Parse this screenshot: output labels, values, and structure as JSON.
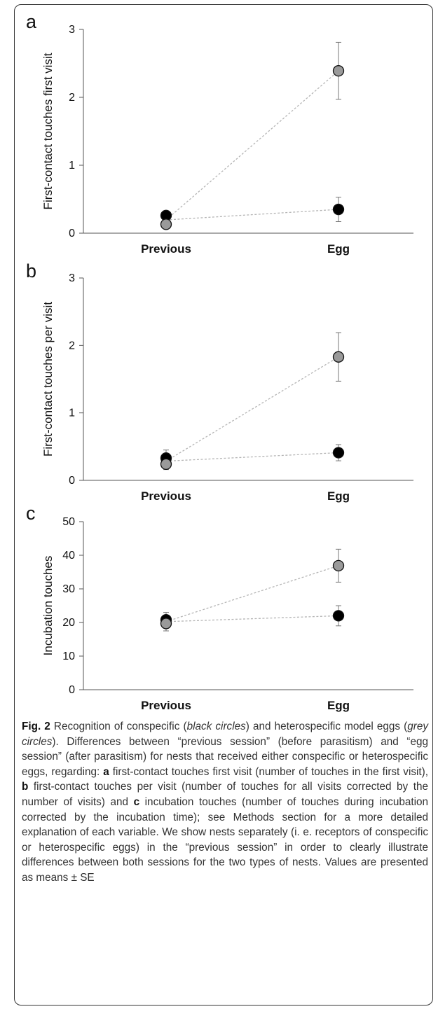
{
  "chart_data": [
    {
      "type": "line",
      "panel_label": "a",
      "categories": [
        "Previous",
        "Egg"
      ],
      "ylabel": "First-contact touches first visit",
      "ylim": [
        0,
        3
      ],
      "yticks": [
        0,
        1,
        2,
        3
      ],
      "grid": false,
      "series": [
        {
          "color": "#000000",
          "values": [
            0.26,
            0.35
          ],
          "errors": [
            0.07,
            0.18
          ]
        },
        {
          "color": "#9a9a9a",
          "values": [
            0.13,
            2.39
          ],
          "errors": [
            0.0,
            0.42
          ]
        }
      ]
    },
    {
      "type": "line",
      "panel_label": "b",
      "categories": [
        "Previous",
        "Egg"
      ],
      "ylabel": "First-contact touches per visit",
      "ylim": [
        0,
        3
      ],
      "yticks": [
        0,
        1,
        2,
        3
      ],
      "grid": false,
      "series": [
        {
          "color": "#000000",
          "values": [
            0.33,
            0.41
          ],
          "errors": [
            0.12,
            0.12
          ]
        },
        {
          "color": "#9a9a9a",
          "values": [
            0.24,
            1.83
          ],
          "errors": [
            0.08,
            0.36
          ]
        }
      ]
    },
    {
      "type": "line",
      "panel_label": "c",
      "categories": [
        "Previous",
        "Egg"
      ],
      "ylabel": "Incubation touches",
      "ylim": [
        0,
        50
      ],
      "yticks": [
        0,
        10,
        20,
        30,
        40,
        50
      ],
      "grid": false,
      "series": [
        {
          "color": "#000000",
          "values": [
            20.8,
            22.0
          ],
          "errors": [
            2.2,
            3.0
          ]
        },
        {
          "color": "#9a9a9a",
          "values": [
            19.7,
            36.9
          ],
          "errors": [
            2.2,
            4.9
          ]
        }
      ]
    }
  ],
  "caption": {
    "fig_label": "Fig. 2",
    "segments": [
      {
        "t": " Recognition of conspecific (",
        "s": "n"
      },
      {
        "t": "black circles",
        "s": "i"
      },
      {
        "t": ") and heterospecific model eggs (",
        "s": "n"
      },
      {
        "t": "grey circles",
        "s": "i"
      },
      {
        "t": "). Differences between “previous session” (before parasitism) and “egg session” (after parasitism) for nests that received either conspecific or heterospecific eggs, regarding: ",
        "s": "n"
      },
      {
        "t": "a",
        "s": "b"
      },
      {
        "t": " first-contact touches first visit (number of touches in the first visit), ",
        "s": "n"
      },
      {
        "t": "b",
        "s": "b"
      },
      {
        "t": " first-contact touches per visit (number of touches for all visits corrected by the number of visits) and ",
        "s": "n"
      },
      {
        "t": "c",
        "s": "b"
      },
      {
        "t": " incubation touches (number of touches during incubation corrected by the incubation time); see Methods section for a more detailed explanation of each variable. We show nests separately (i. e. receptors of conspecific or heterospecific eggs) in the “previous session” in order to clearly illustrate differences between both sessions for the two types of nests. Values are presented as means ± SE",
        "s": "n"
      }
    ]
  }
}
